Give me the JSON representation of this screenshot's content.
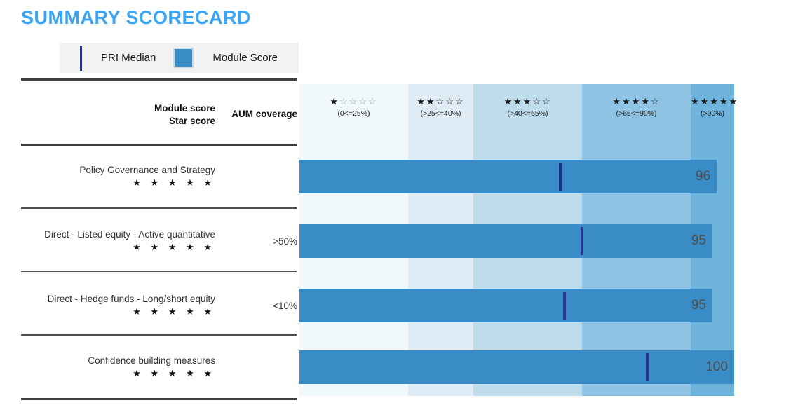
{
  "title": "SUMMARY SCORECARD",
  "title_color": "#3BA4F4",
  "legend": {
    "pri_median_label": "PRI Median",
    "module_score_label": "Module Score",
    "median_color": "#26348F",
    "bar_color": "#398CC6"
  },
  "table_header": {
    "col1_line1": "Module score",
    "col1_line2": "Star score",
    "col2": "AUM coverage"
  },
  "chart_data": {
    "type": "bar",
    "orientation": "horizontal",
    "title": "SUMMARY SCORECARD",
    "xlim": [
      0,
      100
    ],
    "legend_position": "top-left",
    "grid": false,
    "bands": [
      {
        "stars_filled": "★",
        "stars_empty": "☆☆☆☆",
        "empty_muted": true,
        "label": "(0<=25%)",
        "range": [
          0,
          25
        ],
        "color": "#F1F8FB"
      },
      {
        "stars_filled": "★★",
        "stars_empty": "☆☆☆",
        "empty_muted": false,
        "label": "(>25<=40%)",
        "range": [
          25,
          40
        ],
        "color": "#DFECF5"
      },
      {
        "stars_filled": "★★★",
        "stars_empty": "☆☆",
        "empty_muted": false,
        "label": "(>40<=65%)",
        "range": [
          40,
          65
        ],
        "color": "#BFDCEC"
      },
      {
        "stars_filled": "★★★★",
        "stars_empty": "☆",
        "empty_muted": false,
        "label": "(>65<=90%)",
        "range": [
          65,
          90
        ],
        "color": "#90C4E4"
      },
      {
        "stars_filled": "★★★★★",
        "stars_empty": "",
        "empty_muted": false,
        "label": "(>90%)",
        "range": [
          90,
          100
        ],
        "color": "#6FB4DC"
      }
    ],
    "rows": [
      {
        "label": "Policy Governance and Strategy",
        "stars": "★ ★ ★ ★ ★",
        "aum": "",
        "score": 96,
        "pri_median": 60
      },
      {
        "label": "Direct - Listed equity - Active quantitative",
        "stars": "★ ★ ★ ★ ★",
        "aum": ">50%",
        "score": 95,
        "pri_median": 65
      },
      {
        "label": "Direct - Hedge funds - Long/short equity",
        "stars": "★ ★ ★ ★ ★",
        "aum": "<10%",
        "score": 95,
        "pri_median": 61
      },
      {
        "label": "Confidence building measures",
        "stars": "★ ★ ★ ★ ★",
        "aum": "",
        "score": 100,
        "pri_median": 80
      }
    ]
  }
}
